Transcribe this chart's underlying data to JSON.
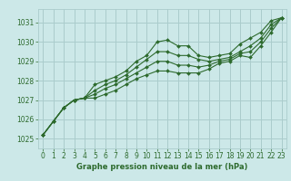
{
  "background_color": "#cce8e8",
  "grid_color": "#aacccc",
  "line_color": "#2d6a2d",
  "marker_color": "#2d6a2d",
  "xlabel": "Graphe pression niveau de la mer (hPa)",
  "xlabel_color": "#2d6a2d",
  "ylabel_color": "#2d6a2d",
  "xlim": [
    -0.5,
    23.5
  ],
  "ylim": [
    1024.5,
    1031.7
  ],
  "yticks": [
    1025,
    1026,
    1027,
    1028,
    1029,
    1030,
    1031
  ],
  "xticks": [
    0,
    1,
    2,
    3,
    4,
    5,
    6,
    7,
    8,
    9,
    10,
    11,
    12,
    13,
    14,
    15,
    16,
    17,
    18,
    19,
    20,
    21,
    22,
    23
  ],
  "series": [
    [
      1025.2,
      1025.9,
      1026.6,
      1027.0,
      1027.1,
      1027.8,
      1028.0,
      1028.2,
      1028.5,
      1029.0,
      1029.3,
      1030.0,
      1030.1,
      1029.8,
      1029.8,
      1029.3,
      1029.2,
      1029.3,
      1029.4,
      1029.9,
      1030.2,
      1030.5,
      1031.1,
      1031.25
    ],
    [
      1025.2,
      1025.9,
      1026.6,
      1027.0,
      1027.1,
      1027.5,
      1027.8,
      1028.0,
      1028.3,
      1028.7,
      1029.1,
      1029.5,
      1029.5,
      1029.3,
      1029.3,
      1029.1,
      1029.0,
      1029.1,
      1029.2,
      1029.5,
      1029.8,
      1030.2,
      1030.9,
      1031.25
    ],
    [
      1025.2,
      1025.9,
      1026.6,
      1027.0,
      1027.1,
      1027.3,
      1027.6,
      1027.8,
      1028.1,
      1028.4,
      1028.7,
      1029.0,
      1029.0,
      1028.8,
      1028.8,
      1028.7,
      1028.8,
      1029.0,
      1029.1,
      1029.4,
      1029.5,
      1030.0,
      1030.7,
      1031.25
    ],
    [
      1025.2,
      1025.9,
      1026.6,
      1027.0,
      1027.1,
      1027.1,
      1027.3,
      1027.5,
      1027.8,
      1028.1,
      1028.3,
      1028.5,
      1028.5,
      1028.4,
      1028.4,
      1028.4,
      1028.6,
      1028.9,
      1029.0,
      1029.3,
      1029.2,
      1029.8,
      1030.5,
      1031.25
    ]
  ],
  "tick_fontsize": 5.5,
  "xlabel_fontsize": 6.0,
  "marker_size": 2.0,
  "line_width": 0.8
}
